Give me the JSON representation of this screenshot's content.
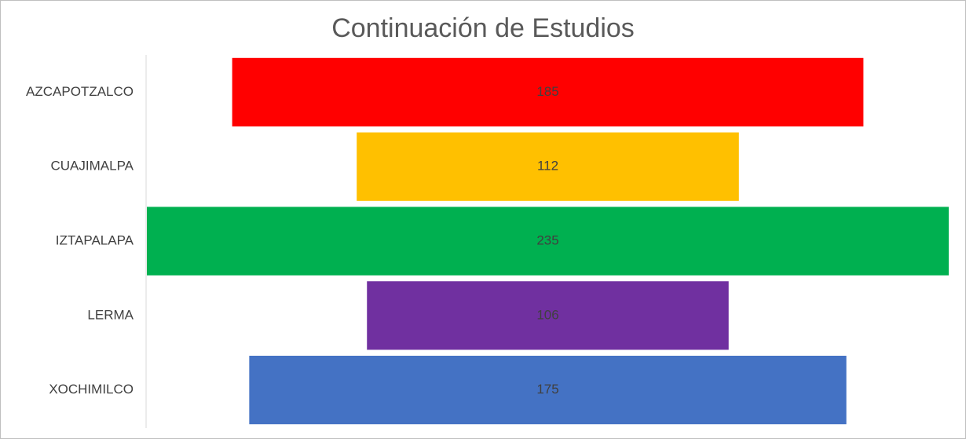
{
  "chart_data": {
    "type": "funnel",
    "title": "Continuación de Estudios",
    "categories": [
      "AZCAPOTZALCO",
      "CUAJIMALPA",
      "IZTAPALAPA",
      "LERMA",
      "XOCHIMILCO"
    ],
    "values": [
      185,
      112,
      235,
      106,
      175
    ],
    "colors": [
      "#ff0000",
      "#ffc000",
      "#00b050",
      "#7030a0",
      "#4472c4"
    ]
  }
}
